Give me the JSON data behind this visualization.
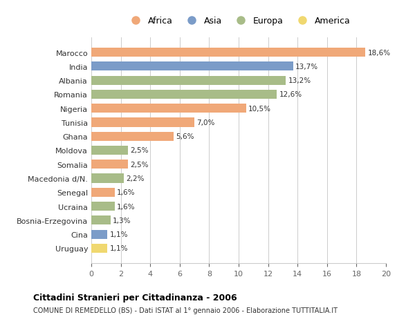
{
  "countries": [
    "Marocco",
    "India",
    "Albania",
    "Romania",
    "Nigeria",
    "Tunisia",
    "Ghana",
    "Moldova",
    "Somalia",
    "Macedonia d/N.",
    "Senegal",
    "Ucraina",
    "Bosnia-Erzegovina",
    "Cina",
    "Uruguay"
  ],
  "values": [
    18.6,
    13.7,
    13.2,
    12.6,
    10.5,
    7.0,
    5.6,
    2.5,
    2.5,
    2.2,
    1.6,
    1.6,
    1.3,
    1.1,
    1.1
  ],
  "continents": [
    "Africa",
    "Asia",
    "Europa",
    "Europa",
    "Africa",
    "Africa",
    "Africa",
    "Europa",
    "Africa",
    "Europa",
    "Africa",
    "Europa",
    "Europa",
    "Asia",
    "America"
  ],
  "colors": {
    "Africa": "#F0A878",
    "Asia": "#7B9CC8",
    "Europa": "#A8BC88",
    "America": "#F0D870"
  },
  "legend_order": [
    "Africa",
    "Asia",
    "Europa",
    "America"
  ],
  "title": "Cittadini Stranieri per Cittadinanza - 2006",
  "subtitle": "COMUNE DI REMEDELLO (BS) - Dati ISTAT al 1° gennaio 2006 - Elaborazione TUTTITALIA.IT",
  "xlim": [
    0,
    20
  ],
  "xticks": [
    0,
    2,
    4,
    6,
    8,
    10,
    12,
    14,
    16,
    18,
    20
  ],
  "bg_color": "#ffffff",
  "grid_color": "#cccccc",
  "bar_height": 0.65
}
